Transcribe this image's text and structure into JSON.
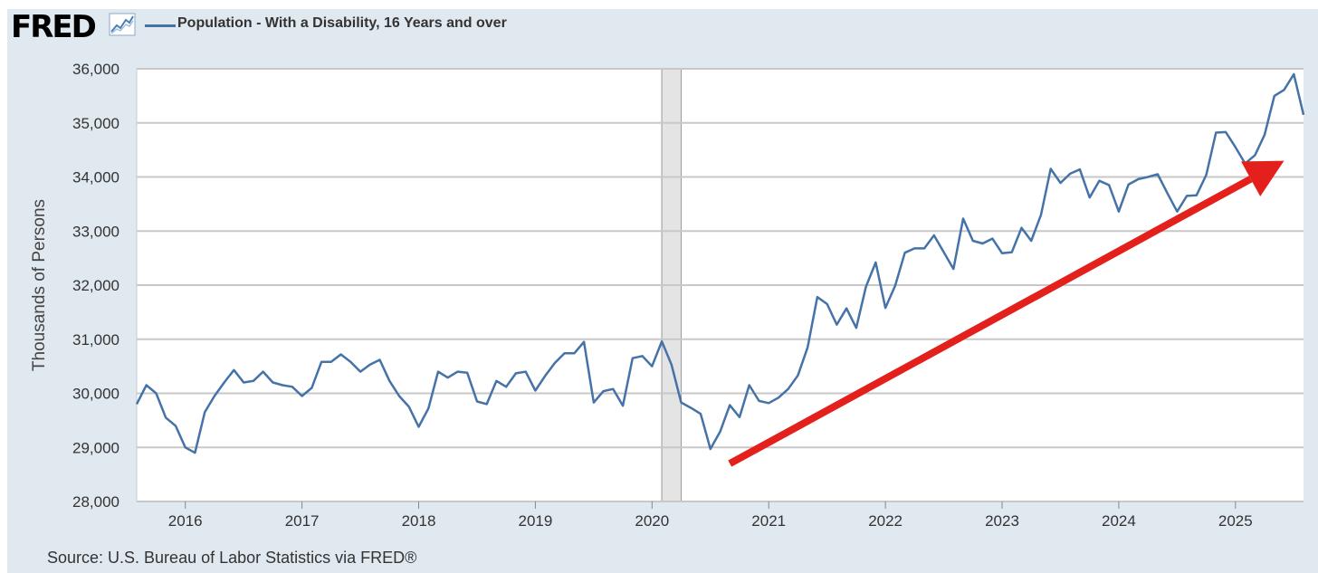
{
  "header": {
    "logo_text": "FRED",
    "logo_icon": "trend-line-chart-icon",
    "legend_label": "Population - With a Disability, 16 Years and over"
  },
  "footer": {
    "source": "Source: U.S. Bureau of Labor Statistics via FRED®"
  },
  "colors": {
    "series": "#4572a7",
    "recession": "#e4e4e4",
    "arrow": "#e3201b",
    "background": "#e1e9f0",
    "grid": "#c8c8c8"
  },
  "chart_data": {
    "type": "line",
    "title": "",
    "xlabel": "",
    "ylabel": "Thousands of Persons",
    "ylim": [
      28000,
      36000
    ],
    "xlim": [
      "2015-08",
      "2025-08"
    ],
    "yticks": [
      "28,000",
      "29,000",
      "30,000",
      "31,000",
      "32,000",
      "33,000",
      "34,000",
      "35,000",
      "36,000"
    ],
    "xticks": [
      "2016",
      "2017",
      "2018",
      "2019",
      "2020",
      "2021",
      "2022",
      "2023",
      "2024",
      "2025"
    ],
    "grid": true,
    "legend": "top-left",
    "recession_shading": [
      [
        "2020-02",
        "2020-04"
      ]
    ],
    "annotation": {
      "type": "arrow",
      "from": [
        "2020-09",
        28700
      ],
      "to": [
        "2025-06",
        34300
      ],
      "color": "#e3201b"
    },
    "series": [
      {
        "name": "Population - With a Disability, 16 Years and over",
        "x": [
          "2015-08",
          "2015-09",
          "2015-10",
          "2015-11",
          "2015-12",
          "2016-01",
          "2016-02",
          "2016-03",
          "2016-04",
          "2016-05",
          "2016-06",
          "2016-07",
          "2016-08",
          "2016-09",
          "2016-10",
          "2016-11",
          "2016-12",
          "2017-01",
          "2017-02",
          "2017-03",
          "2017-04",
          "2017-05",
          "2017-06",
          "2017-07",
          "2017-08",
          "2017-09",
          "2017-10",
          "2017-11",
          "2017-12",
          "2018-01",
          "2018-02",
          "2018-03",
          "2018-04",
          "2018-05",
          "2018-06",
          "2018-07",
          "2018-08",
          "2018-09",
          "2018-10",
          "2018-11",
          "2018-12",
          "2019-01",
          "2019-02",
          "2019-03",
          "2019-04",
          "2019-05",
          "2019-06",
          "2019-07",
          "2019-08",
          "2019-09",
          "2019-10",
          "2019-11",
          "2019-12",
          "2020-01",
          "2020-02",
          "2020-03",
          "2020-04",
          "2020-05",
          "2020-06",
          "2020-07",
          "2020-08",
          "2020-09",
          "2020-10",
          "2020-11",
          "2020-12",
          "2021-01",
          "2021-02",
          "2021-03",
          "2021-04",
          "2021-05",
          "2021-06",
          "2021-07",
          "2021-08",
          "2021-09",
          "2021-10",
          "2021-11",
          "2021-12",
          "2022-01",
          "2022-02",
          "2022-03",
          "2022-04",
          "2022-05",
          "2022-06",
          "2022-07",
          "2022-08",
          "2022-09",
          "2022-10",
          "2022-11",
          "2022-12",
          "2023-01",
          "2023-02",
          "2023-03",
          "2023-04",
          "2023-05",
          "2023-06",
          "2023-07",
          "2023-08",
          "2023-09",
          "2023-10",
          "2023-11",
          "2023-12",
          "2024-01",
          "2024-02",
          "2024-03",
          "2024-04",
          "2024-05",
          "2024-06",
          "2024-07",
          "2024-08",
          "2024-09",
          "2024-10",
          "2024-11",
          "2024-12",
          "2025-01",
          "2025-02",
          "2025-03",
          "2025-04",
          "2025-05",
          "2025-06",
          "2025-07",
          "2025-08"
        ],
        "values": [
          29800,
          30150,
          30000,
          29550,
          29400,
          29000,
          28900,
          29650,
          29950,
          30200,
          30430,
          30200,
          30230,
          30400,
          30200,
          30150,
          30120,
          29950,
          30100,
          30580,
          30580,
          30720,
          30580,
          30400,
          30530,
          30620,
          30230,
          29950,
          29750,
          29380,
          29720,
          30400,
          30290,
          30400,
          30380,
          29850,
          29800,
          30230,
          30120,
          30370,
          30400,
          30050,
          30320,
          30560,
          30740,
          30740,
          30950,
          29830,
          30040,
          30080,
          29770,
          30650,
          30690,
          30500,
          30960,
          30530,
          29830,
          29730,
          29620,
          28970,
          29290,
          29780,
          29560,
          30150,
          29860,
          29820,
          29920,
          30080,
          30330,
          30850,
          31780,
          31650,
          31270,
          31570,
          31210,
          31970,
          32420,
          31580,
          31990,
          32600,
          32680,
          32680,
          32920,
          32610,
          32300,
          33230,
          32820,
          32770,
          32860,
          32590,
          32610,
          33060,
          32820,
          33300,
          34150,
          33890,
          34060,
          34140,
          33620,
          33930,
          33850,
          33360,
          33860,
          33960,
          34000,
          34050,
          33700,
          33360,
          33650,
          33660,
          34040,
          34820,
          34830,
          34550,
          34250,
          34400,
          34780,
          35500,
          35610,
          35900,
          35150
        ]
      }
    ]
  }
}
